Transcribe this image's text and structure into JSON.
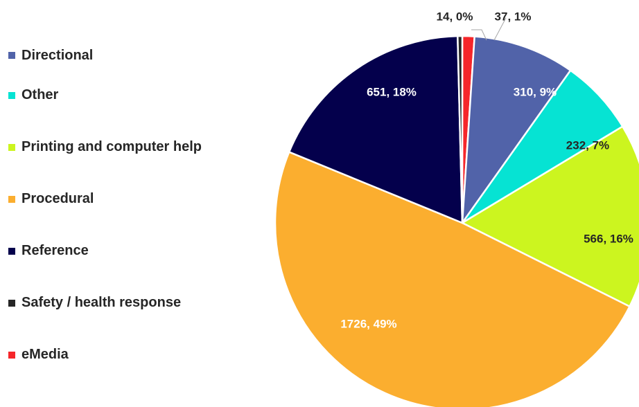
{
  "chart_data": {
    "type": "pie",
    "title": "",
    "legend_position": "left",
    "slices": [
      {
        "label": "eMedia",
        "value": 37,
        "percent_label": "1%",
        "color": "#f5262a"
      },
      {
        "label": "Directional",
        "value": 310,
        "percent_label": "9%",
        "color": "#5163a9"
      },
      {
        "label": "Other",
        "value": 232,
        "percent_label": "7%",
        "color": "#06e3d3"
      },
      {
        "label": "Printing and computer help",
        "value": 566,
        "percent_label": "16%",
        "color": "#ccf51f"
      },
      {
        "label": "Procedural",
        "value": 1726,
        "percent_label": "49%",
        "color": "#fbae2f"
      },
      {
        "label": "Reference",
        "value": 651,
        "percent_label": "18%",
        "color": "#04004c"
      },
      {
        "label": "Safety / health response",
        "value": 14,
        "percent_label": "0%",
        "color": "#262626"
      }
    ],
    "data_labels": [
      "37, 1%",
      "310, 9%",
      "232, 7%",
      "566, 16%",
      "1726, 49%",
      "651, 18%",
      "14, 0%"
    ],
    "legend": [
      {
        "label": "Directional",
        "color": "#5163a9"
      },
      {
        "label": "Other",
        "color": "#06e3d3"
      },
      {
        "label": "Printing and computer help",
        "color": "#ccf51f"
      },
      {
        "label": "Procedural",
        "color": "#fbae2f"
      },
      {
        "label": "Reference",
        "color": "#04004c"
      },
      {
        "label": "Safety / health response",
        "color": "#262626"
      },
      {
        "label": "eMedia",
        "color": "#f5262a"
      }
    ]
  }
}
